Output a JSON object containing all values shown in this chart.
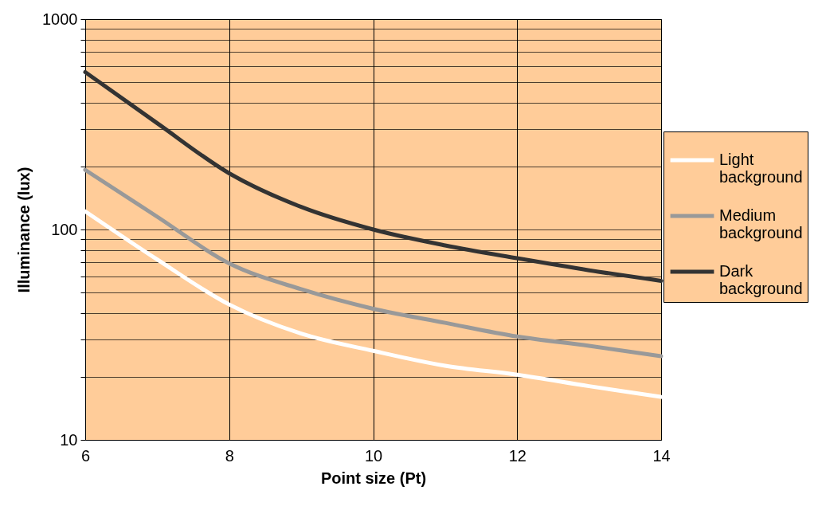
{
  "chart_data": {
    "type": "line",
    "xlabel": "Point size (Pt)",
    "ylabel": "Illuminance (lux)",
    "x": [
      6,
      7,
      8,
      9,
      10,
      11,
      12,
      13,
      14
    ],
    "series": [
      {
        "name": "Light background",
        "color": "#ffffff",
        "values": [
          122,
          72,
          44,
          32,
          26.5,
          22.5,
          20.4,
          18,
          16
        ]
      },
      {
        "name": "Medium background",
        "color": "#999999",
        "values": [
          192,
          115,
          69,
          52,
          42,
          36,
          31,
          28,
          25
        ]
      },
      {
        "name": "Dark background",
        "color": "#333333",
        "values": [
          560,
          320,
          185,
          128,
          100,
          84,
          73,
          64,
          57
        ]
      }
    ],
    "xlim": [
      6,
      14
    ],
    "xticks": [
      6,
      8,
      10,
      12,
      14
    ],
    "ylim": [
      10,
      1000
    ],
    "yticks": [
      10,
      {
        "value": 20,
        "label": null
      },
      {
        "value": 30,
        "label": null
      },
      {
        "value": 40,
        "label": null
      },
      {
        "value": 50,
        "label": null
      },
      {
        "value": 60,
        "label": null
      },
      {
        "value": 70,
        "label": null
      },
      {
        "value": 80,
        "label": null
      },
      {
        "value": 90,
        "label": null
      },
      100,
      {
        "value": 200,
        "label": null
      },
      {
        "value": 300,
        "label": null
      },
      {
        "value": 400,
        "label": null
      },
      {
        "value": 500,
        "label": null
      },
      {
        "value": 600,
        "label": null
      },
      {
        "value": 700,
        "label": null
      },
      {
        "value": 800,
        "label": null
      },
      {
        "value": 900,
        "label": null
      },
      1000
    ],
    "log": "y",
    "grid": true,
    "legend": "right",
    "marker": "none",
    "line_style": "solid"
  }
}
